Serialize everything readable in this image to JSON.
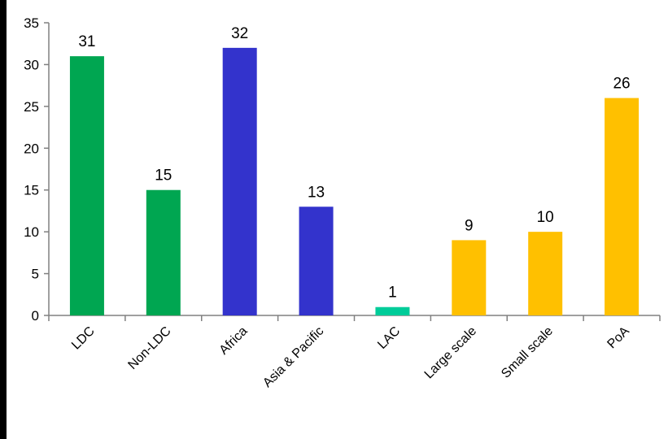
{
  "chart_data": {
    "type": "bar",
    "categories": [
      "LDC",
      "Non-LDC",
      "Africa",
      "Asia & Pacific",
      "LAC",
      "Large scale",
      "Small scale",
      "PoA"
    ],
    "values": [
      31,
      15,
      32,
      13,
      1,
      9,
      10,
      26
    ],
    "bar_colors": [
      "#00a651",
      "#00a651",
      "#3333cc",
      "#3333cc",
      "#00cc99",
      "#ffc000",
      "#ffc000",
      "#ffc000"
    ],
    "title": "",
    "xlabel": "",
    "ylabel": "",
    "ylim": [
      0,
      35
    ],
    "yticks": [
      "0",
      "5",
      "10",
      "15",
      "20",
      "25",
      "30",
      "35"
    ],
    "grid": false,
    "legend": "none"
  },
  "colors": {
    "frame": "#000000",
    "plot_background": "#ffffff",
    "axis": "#808080",
    "text": "#000000"
  }
}
